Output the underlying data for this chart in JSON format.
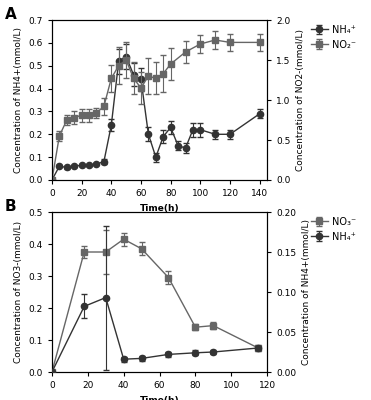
{
  "panel_A": {
    "nh4_time": [
      0,
      5,
      10,
      15,
      20,
      25,
      30,
      35,
      40,
      45,
      50,
      55,
      60,
      65,
      70,
      75,
      80,
      85,
      90,
      95,
      100,
      110,
      120,
      140
    ],
    "nh4_vals": [
      0.0,
      0.06,
      0.055,
      0.06,
      0.065,
      0.065,
      0.07,
      0.08,
      0.24,
      0.52,
      0.54,
      0.46,
      0.44,
      0.2,
      0.1,
      0.19,
      0.23,
      0.15,
      0.14,
      0.22,
      0.22,
      0.2,
      0.2,
      0.29
    ],
    "nh4_err": [
      0.0,
      0.005,
      0.005,
      0.005,
      0.005,
      0.005,
      0.005,
      0.01,
      0.025,
      0.055,
      0.055,
      0.05,
      0.05,
      0.03,
      0.02,
      0.03,
      0.03,
      0.02,
      0.02,
      0.03,
      0.03,
      0.02,
      0.02,
      0.02
    ],
    "no2_time": [
      0,
      5,
      10,
      15,
      20,
      25,
      30,
      35,
      40,
      45,
      50,
      55,
      60,
      65,
      70,
      75,
      80,
      90,
      100,
      110,
      120,
      140
    ],
    "no2_vals": [
      0.0,
      0.55,
      0.75,
      0.78,
      0.81,
      0.81,
      0.84,
      0.92,
      1.27,
      1.43,
      1.5,
      1.27,
      1.15,
      1.3,
      1.27,
      1.33,
      1.45,
      1.6,
      1.7,
      1.75,
      1.72,
      1.72
    ],
    "no2_err": [
      0.0,
      0.06,
      0.06,
      0.08,
      0.08,
      0.08,
      0.06,
      0.11,
      0.17,
      0.23,
      0.23,
      0.2,
      0.2,
      0.23,
      0.2,
      0.23,
      0.2,
      0.14,
      0.11,
      0.11,
      0.11,
      0.11
    ],
    "nh4_color": "#333333",
    "no2_color": "#666666",
    "ylabel_left": "Concentration of NH4+(mmol/L)",
    "ylabel_right": "Concentration of NO2-(mmol/L)",
    "xlabel": "Time(h)",
    "ylim_left": [
      0,
      0.7
    ],
    "ylim_right": [
      0.0,
      2.0
    ],
    "xlim": [
      0,
      145
    ],
    "xticks": [
      0,
      20,
      40,
      60,
      80,
      100,
      120,
      140
    ],
    "yticks_left": [
      0.0,
      0.1,
      0.2,
      0.3,
      0.4,
      0.5,
      0.6,
      0.7
    ],
    "yticks_right": [
      0.0,
      0.5,
      1.0,
      1.5,
      2.0
    ],
    "legend_nh4": "NH4+",
    "legend_no2": "NO2-",
    "label": "A"
  },
  "panel_B": {
    "no3_time": [
      0,
      18,
      30,
      40,
      50,
      65,
      80,
      90,
      115
    ],
    "no3_vals": [
      0.0,
      0.375,
      0.375,
      0.415,
      0.385,
      0.295,
      0.14,
      0.145,
      0.075
    ],
    "no3_err": [
      0.0,
      0.02,
      0.07,
      0.02,
      0.02,
      0.02,
      0.01,
      0.01,
      0.01
    ],
    "nh4_time": [
      0,
      18,
      30,
      40,
      50,
      65,
      80,
      90,
      115
    ],
    "nh4_vals": [
      0.0,
      0.082,
      0.093,
      0.016,
      0.017,
      0.022,
      0.024,
      0.025,
      0.03
    ],
    "nh4_err": [
      0.0,
      0.015,
      0.09,
      0.003,
      0.003,
      0.003,
      0.003,
      0.003,
      0.003
    ],
    "no3_color": "#666666",
    "nh4_color": "#333333",
    "ylabel_left": "Concentration of NO3-(mmol/L)",
    "ylabel_right": "Concentration of NH4+(mmol/L)",
    "xlabel": "Time(h)",
    "ylim_left": [
      0,
      0.5
    ],
    "ylim_right": [
      0.0,
      0.2
    ],
    "xlim": [
      0,
      120
    ],
    "xticks": [
      0,
      20,
      40,
      60,
      80,
      100,
      120
    ],
    "yticks_left": [
      0.0,
      0.1,
      0.2,
      0.3,
      0.4,
      0.5
    ],
    "yticks_right": [
      0.0,
      0.05,
      0.1,
      0.15,
      0.2
    ],
    "legend_no3": "NO3-",
    "legend_nh4": "NH4+",
    "label": "B"
  },
  "figure": {
    "bg_color": "#ffffff",
    "marker_circle": "o",
    "marker_square": "s",
    "markersize": 4.5,
    "linewidth": 1.0,
    "capsize": 2,
    "elinewidth": 0.8,
    "fontsize_label": 6.5,
    "fontsize_tick": 6.5,
    "fontsize_legend": 7,
    "fontsize_panel": 11
  }
}
